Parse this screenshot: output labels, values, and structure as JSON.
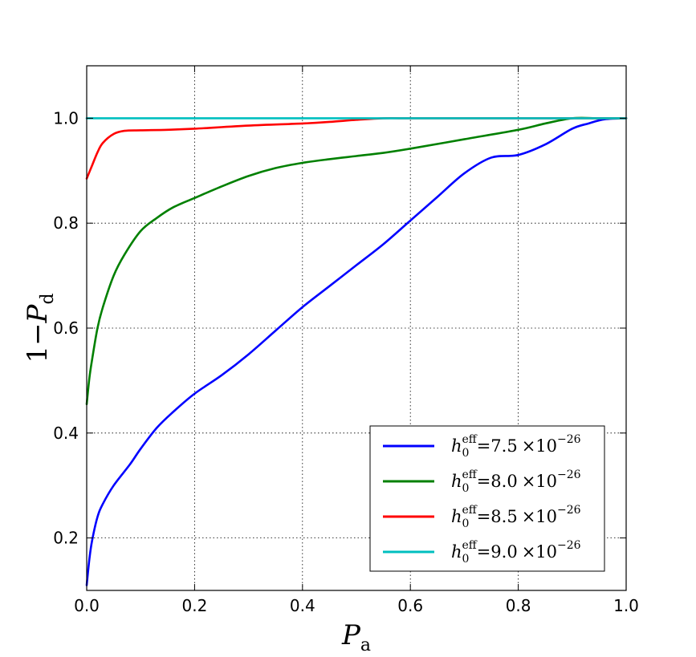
{
  "chart_data": {
    "type": "line",
    "xlabel": {
      "main": "P",
      "sub": "a"
    },
    "ylabel": {
      "prefix": "1−",
      "main": "P",
      "sub": "d"
    },
    "xlim": [
      0.0,
      1.0
    ],
    "ylim": [
      0.1,
      1.1
    ],
    "xticks": [
      0.0,
      0.2,
      0.4,
      0.6,
      0.8,
      1.0
    ],
    "xtick_labels": [
      "0.0",
      "0.2",
      "0.4",
      "0.6",
      "0.8",
      "1.0"
    ],
    "yticks": [
      0.2,
      0.4,
      0.6,
      0.8,
      1.0
    ],
    "ytick_labels": [
      "0.2",
      "0.4",
      "0.6",
      "0.8",
      "1.0"
    ],
    "grid": true,
    "legend_position": "lower-right",
    "series": [
      {
        "name": "h0eff = 7.5 ×10−26",
        "label": {
          "h": "h",
          "sub": "0",
          "sup": "eff",
          "value": "=7.5",
          "times": "×10",
          "exp": "−26"
        },
        "color": "#0000ff",
        "x": [
          0.0,
          0.005,
          0.01,
          0.02,
          0.03,
          0.05,
          0.08,
          0.1,
          0.13,
          0.16,
          0.2,
          0.25,
          0.3,
          0.35,
          0.4,
          0.45,
          0.5,
          0.55,
          0.6,
          0.65,
          0.7,
          0.75,
          0.8,
          0.85,
          0.9,
          0.93,
          0.96,
          1.0
        ],
        "y": [
          0.11,
          0.16,
          0.195,
          0.24,
          0.265,
          0.3,
          0.34,
          0.37,
          0.41,
          0.44,
          0.475,
          0.51,
          0.55,
          0.595,
          0.64,
          0.68,
          0.72,
          0.76,
          0.805,
          0.85,
          0.895,
          0.925,
          0.93,
          0.95,
          0.98,
          0.99,
          0.998,
          1.0
        ]
      },
      {
        "name": "h0eff = 8.0 ×10−26",
        "label": {
          "h": "h",
          "sub": "0",
          "sup": "eff",
          "value": "=8.0",
          "times": "×10",
          "exp": "−26"
        },
        "color": "#008000",
        "x": [
          0.0,
          0.005,
          0.01,
          0.02,
          0.03,
          0.05,
          0.07,
          0.1,
          0.13,
          0.16,
          0.2,
          0.25,
          0.3,
          0.35,
          0.4,
          0.45,
          0.5,
          0.55,
          0.6,
          0.7,
          0.8,
          0.85,
          0.9,
          0.95,
          1.0
        ],
        "y": [
          0.455,
          0.505,
          0.54,
          0.6,
          0.64,
          0.7,
          0.74,
          0.785,
          0.81,
          0.83,
          0.848,
          0.87,
          0.89,
          0.905,
          0.915,
          0.922,
          0.928,
          0.934,
          0.942,
          0.96,
          0.978,
          0.99,
          1.0,
          1.0,
          1.0
        ]
      },
      {
        "name": "h0eff = 8.5 ×10−26",
        "label": {
          "h": "h",
          "sub": "0",
          "sup": "eff",
          "value": "=8.5",
          "times": "×10",
          "exp": "−26"
        },
        "color": "#ff0000",
        "x": [
          0.0,
          0.01,
          0.02,
          0.03,
          0.05,
          0.07,
          0.1,
          0.15,
          0.2,
          0.3,
          0.4,
          0.45,
          0.5,
          0.55,
          0.6,
          0.8,
          1.0
        ],
        "y": [
          0.885,
          0.91,
          0.935,
          0.953,
          0.97,
          0.976,
          0.977,
          0.978,
          0.98,
          0.986,
          0.99,
          0.993,
          0.997,
          1.0,
          1.0,
          1.0,
          1.0
        ]
      },
      {
        "name": "h0eff = 9.0 ×10−26",
        "label": {
          "h": "h",
          "sub": "0",
          "sup": "eff",
          "value": "=9.0",
          "times": "×10",
          "exp": "−26"
        },
        "color": "#00bfbf",
        "x": [
          0.0,
          1.0
        ],
        "y": [
          1.0,
          1.0
        ]
      }
    ]
  }
}
